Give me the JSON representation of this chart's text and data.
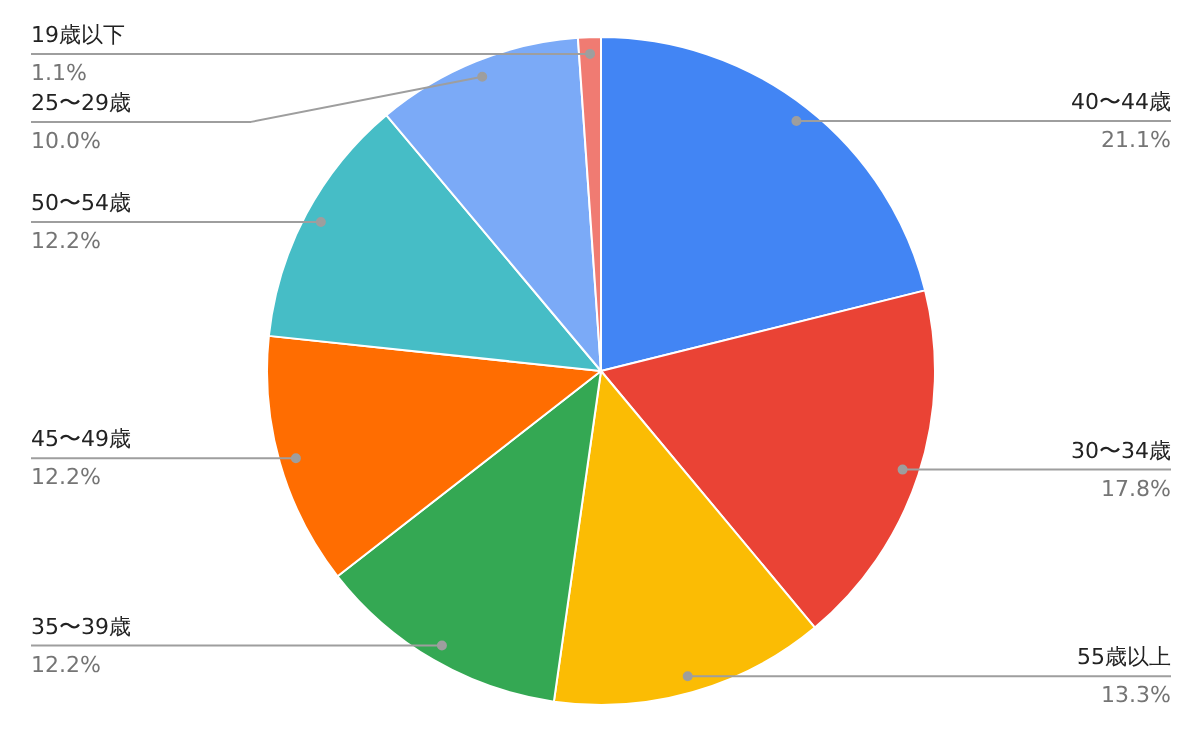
{
  "chart_data": {
    "type": "pie",
    "categories": [
      "40〜44歳",
      "30〜34歳",
      "55歳以上",
      "35〜39歳",
      "45〜49歳",
      "50〜54歳",
      "25〜29歳",
      "19歳以下"
    ],
    "values": [
      21.1,
      17.8,
      13.3,
      12.2,
      12.2,
      12.2,
      10.0,
      1.1
    ],
    "value_labels": [
      "21.1%",
      "17.8%",
      "13.3%",
      "12.2%",
      "12.2%",
      "12.2%",
      "10.0%",
      "1.1%"
    ],
    "colors": [
      "#4285f4",
      "#ea4335",
      "#fbbc04",
      "#34a853",
      "#ff6d01",
      "#46bdc6",
      "#7baaf7",
      "#f07b72"
    ]
  }
}
